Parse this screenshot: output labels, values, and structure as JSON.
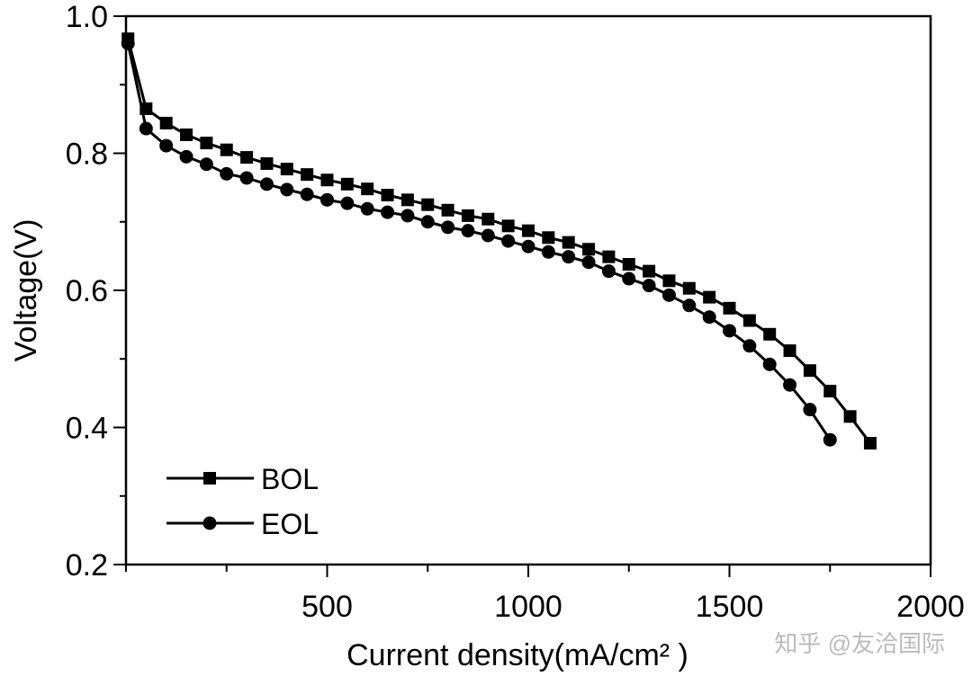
{
  "chart_data": {
    "type": "line",
    "xlabel": "Current density(mA/cm² )",
    "ylabel": "Voltage(V)",
    "watermark": "知乎 @友洽国际",
    "xlim": [
      0,
      2000
    ],
    "xticks": [
      500,
      1000,
      1500,
      2000
    ],
    "xminorticks": [
      0,
      250,
      750,
      1250,
      1750
    ],
    "ylim": [
      0.2,
      1.0
    ],
    "yticks": [
      0.2,
      0.4,
      0.6,
      0.8,
      {
        "value": 1,
        "label": "1.0"
      }
    ],
    "yminorticks": [
      0.3,
      0.5,
      0.7,
      0.9
    ],
    "series": [
      {
        "name": "BOL",
        "color": "#000000",
        "marker": "square",
        "x": [
          5,
          50,
          100,
          150,
          200,
          250,
          300,
          350,
          400,
          450,
          500,
          550,
          600,
          650,
          700,
          750,
          800,
          850,
          900,
          950,
          1000,
          1050,
          1100,
          1150,
          1200,
          1250,
          1300,
          1350,
          1400,
          1450,
          1500,
          1550,
          1600,
          1650,
          1700,
          1750,
          1800,
          1850
        ],
        "values": [
          0.967,
          0.865,
          0.844,
          0.827,
          0.815,
          0.805,
          0.794,
          0.785,
          0.777,
          0.769,
          0.761,
          0.755,
          0.748,
          0.739,
          0.732,
          0.725,
          0.717,
          0.709,
          0.704,
          0.694,
          0.687,
          0.677,
          0.67,
          0.66,
          0.649,
          0.638,
          0.628,
          0.614,
          0.603,
          0.59,
          0.574,
          0.556,
          0.536,
          0.512,
          0.483,
          0.453,
          0.416,
          0.377
        ]
      },
      {
        "name": "EOL",
        "color": "#000000",
        "marker": "circle",
        "x": [
          5,
          50,
          100,
          150,
          200,
          250,
          300,
          350,
          400,
          450,
          500,
          550,
          600,
          650,
          700,
          750,
          800,
          850,
          900,
          950,
          1000,
          1050,
          1100,
          1150,
          1200,
          1250,
          1300,
          1350,
          1400,
          1450,
          1500,
          1550,
          1600,
          1650,
          1700,
          1750
        ],
        "values": [
          0.96,
          0.836,
          0.811,
          0.795,
          0.784,
          0.77,
          0.764,
          0.755,
          0.747,
          0.74,
          0.732,
          0.727,
          0.719,
          0.714,
          0.709,
          0.7,
          0.692,
          0.687,
          0.68,
          0.672,
          0.664,
          0.656,
          0.649,
          0.641,
          0.628,
          0.617,
          0.607,
          0.593,
          0.578,
          0.561,
          0.541,
          0.519,
          0.492,
          0.462,
          0.426,
          0.382
        ]
      }
    ]
  }
}
